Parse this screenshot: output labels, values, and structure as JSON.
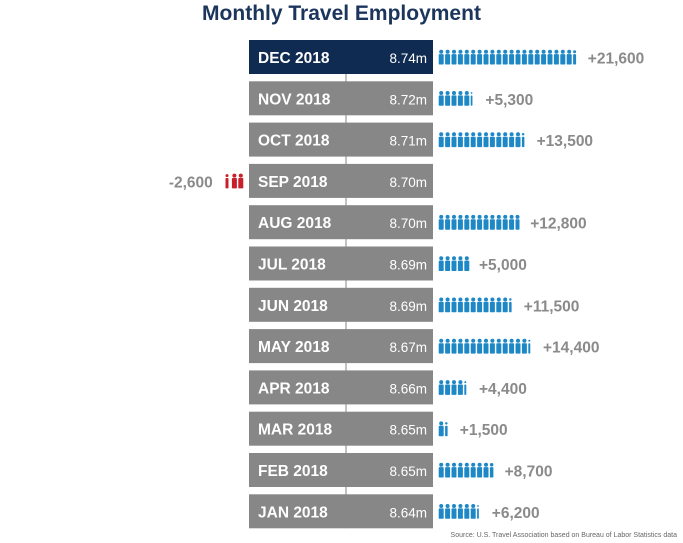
{
  "colors": {
    "title": "#1b355c",
    "highlight_box": "#0f2b52",
    "month_box": "#878787",
    "positive_icon": "#1e88c7",
    "negative_icon": "#c8202b",
    "change_text": "#8a8a8a",
    "connector": "#9a9a9a"
  },
  "chart_data": {
    "type": "bar",
    "title": "Monthly Travel Employment",
    "source": "Source: U.S. Travel Association based on Bureau of Labor Statistics data",
    "icon": "person-icon",
    "rows": [
      {
        "label": "DEC 2018",
        "employment": "8.74m",
        "change": 21600,
        "change_label": "+21,600",
        "highlight": true
      },
      {
        "label": "NOV 2018",
        "employment": "8.72m",
        "change": 5300,
        "change_label": "+5,300",
        "highlight": false
      },
      {
        "label": "OCT 2018",
        "employment": "8.71m",
        "change": 13500,
        "change_label": "+13,500",
        "highlight": false
      },
      {
        "label": "SEP 2018",
        "employment": "8.70m",
        "change": -2600,
        "change_label": "-2,600",
        "highlight": false
      },
      {
        "label": "AUG 2018",
        "employment": "8.70m",
        "change": 12800,
        "change_label": "+12,800",
        "highlight": false
      },
      {
        "label": "JUL 2018",
        "employment": "8.69m",
        "change": 5000,
        "change_label": "+5,000",
        "highlight": false
      },
      {
        "label": "JUN 2018",
        "employment": "8.69m",
        "change": 11500,
        "change_label": "+11,500",
        "highlight": false
      },
      {
        "label": "MAY 2018",
        "employment": "8.67m",
        "change": 14400,
        "change_label": "+14,400",
        "highlight": false
      },
      {
        "label": "APR 2018",
        "employment": "8.66m",
        "change": 4400,
        "change_label": "+4,400",
        "highlight": false
      },
      {
        "label": "MAR 2018",
        "employment": "8.65m",
        "change": 1500,
        "change_label": "+1,500",
        "highlight": false
      },
      {
        "label": "FEB 2018",
        "employment": "8.65m",
        "change": 8700,
        "change_label": "+8,700",
        "highlight": false
      },
      {
        "label": "JAN 2018",
        "employment": "8.64m",
        "change": 6200,
        "change_label": "+6,200",
        "highlight": false
      }
    ]
  }
}
